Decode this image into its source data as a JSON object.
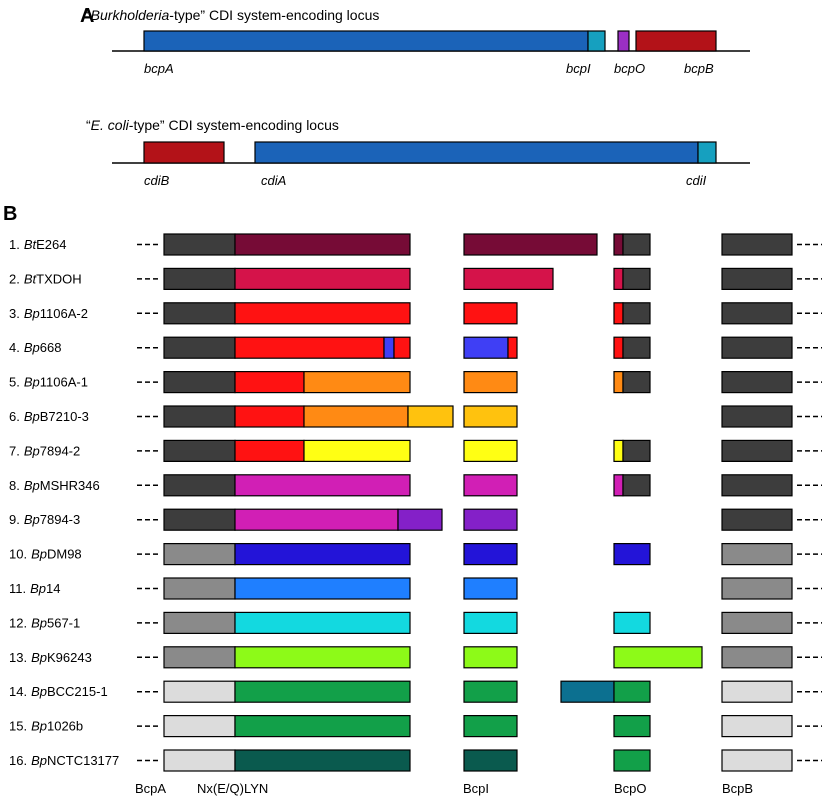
{
  "panel_a": {
    "label": "A",
    "locus1": {
      "title": "“Burkholderia-type” CDI system-encoding locus",
      "title_pre": "“",
      "title_it": "Burkholderia",
      "title_post": "-type” CDI system-encoding locus",
      "genes": [
        {
          "name": "bcpA",
          "color": "#1b63b8"
        },
        {
          "name": "bcpI",
          "color": "#16a0bf"
        },
        {
          "name": "bcpO",
          "color": "#9b2fc4"
        },
        {
          "name": "bcpB",
          "color": "#b31218"
        }
      ]
    },
    "locus2": {
      "title_pre": "“",
      "title_it": "E. coli",
      "title_post": "-type” CDI system-encoding locus",
      "genes": [
        {
          "name": "cdiB",
          "color": "#b31218"
        },
        {
          "name": "cdiA",
          "color": "#1b63b8"
        },
        {
          "name": "cdiI",
          "color": "#16a0bf"
        }
      ]
    }
  },
  "panel_b": {
    "label": "B",
    "strains": [
      {
        "num": "1.",
        "sp": "Bt",
        "name": "E264",
        "a_base": "#3d3d3d",
        "a_segs": [
          "#760b36"
        ],
        "i_segs": [
          "#760b36"
        ],
        "o_segs": [
          "#760b36"
        ],
        "b_color": "#3d3d3d"
      },
      {
        "num": "2.",
        "sp": "Bt",
        "name": "TXDOH",
        "a_base": "#3d3d3d",
        "a_segs": [
          "#d5134a"
        ],
        "i_segs": [
          "#d5134a"
        ],
        "o_segs": [
          "#d5134a"
        ],
        "b_color": "#3d3d3d"
      },
      {
        "num": "3.",
        "sp": "Bp",
        "name": "1106A-2",
        "a_base": "#3d3d3d",
        "a_segs": [
          "#ff1212"
        ],
        "i_segs": [
          "#ff1212"
        ],
        "o_segs": [
          "#ff1212"
        ],
        "b_color": "#3d3d3d"
      },
      {
        "num": "4.",
        "sp": "Bp",
        "name": "668",
        "a_base": "#3d3d3d",
        "a_segs": [
          "#ff1212",
          "#3f3ff5",
          "#ff1212"
        ],
        "i_segs": [
          "#3f3ff5",
          "#ff1212"
        ],
        "o_segs": [
          "#ff1212"
        ],
        "b_color": "#3d3d3d"
      },
      {
        "num": "5.",
        "sp": "Bp",
        "name": "1106A-1",
        "a_base": "#3d3d3d",
        "a_segs": [
          "#ff1212",
          "#ff8a14"
        ],
        "i_segs": [
          "#ff8a14"
        ],
        "o_segs": [
          "#ff8a14"
        ],
        "b_color": "#3d3d3d"
      },
      {
        "num": "6.",
        "sp": "Bp",
        "name": "B7210-3",
        "a_base": "#3d3d3d",
        "a_segs": [
          "#ff1212",
          "#ff8a14",
          "#ffc20e"
        ],
        "i_segs": [
          "#ffc20e"
        ],
        "o_segs": [],
        "b_color": "#3d3d3d"
      },
      {
        "num": "7.",
        "sp": "Bp",
        "name": "7894-2",
        "a_base": "#3d3d3d",
        "a_segs": [
          "#ff1212",
          "#ffff14"
        ],
        "i_segs": [
          "#ffff14"
        ],
        "o_segs": [
          "#ffff14"
        ],
        "b_color": "#3d3d3d"
      },
      {
        "num": "8.",
        "sp": "Bp",
        "name": "MSHR346",
        "a_base": "#3d3d3d",
        "a_segs": [
          "#d11fb5"
        ],
        "i_segs": [
          "#d11fb5"
        ],
        "o_segs": [
          "#d11fb5"
        ],
        "b_color": "#3d3d3d"
      },
      {
        "num": "9.",
        "sp": "Bp",
        "name": "7894-3",
        "a_base": "#3d3d3d",
        "a_segs": [
          "#d11fb5",
          "#8420c8"
        ],
        "i_segs": [
          "#8420c8"
        ],
        "o_segs": [],
        "b_color": "#3d3d3d"
      },
      {
        "num": "10.",
        "sp": "Bp",
        "name": "DM98",
        "a_base": "#8a8a8a",
        "a_segs": [
          "#2314d8"
        ],
        "i_segs": [
          "#2314d8"
        ],
        "o_segs": [
          "#2314d8"
        ],
        "b_color": "#8a8a8a"
      },
      {
        "num": "11.",
        "sp": "Bp",
        "name": "14",
        "a_base": "#8a8a8a",
        "a_segs": [
          "#1f7fff"
        ],
        "i_segs": [
          "#1f7fff"
        ],
        "o_segs": [],
        "b_color": "#8a8a8a"
      },
      {
        "num": "12.",
        "sp": "Bp",
        "name": "567-1",
        "a_base": "#8a8a8a",
        "a_segs": [
          "#13d9e0"
        ],
        "i_segs": [
          "#13d9e0"
        ],
        "o_segs": [
          "#13d9e0"
        ],
        "b_color": "#8a8a8a"
      },
      {
        "num": "13.",
        "sp": "Bp",
        "name": "K96243",
        "a_base": "#8a8a8a",
        "a_segs": [
          "#8dfa18"
        ],
        "i_segs": [
          "#8dfa18"
        ],
        "o_segs": [
          "#8dfa18"
        ],
        "b_color": "#8a8a8a"
      },
      {
        "num": "14.",
        "sp": "Bp",
        "name": "BCC215-1",
        "a_base": "#dcdcdc",
        "a_segs": [
          "#12a049"
        ],
        "i_segs": [
          "#12a049"
        ],
        "o_segs": [
          "#12a049"
        ],
        "b_color": "#dcdcdc",
        "extra_color": "#0c7090"
      },
      {
        "num": "15.",
        "sp": "Bp",
        "name": "1026b",
        "a_base": "#dcdcdc",
        "a_segs": [
          "#12a049"
        ],
        "i_segs": [
          "#12a049"
        ],
        "o_segs": [
          "#12a049"
        ],
        "b_color": "#dcdcdc"
      },
      {
        "num": "16.",
        "sp": "Bp",
        "name": "NCTC13177",
        "a_base": "#dcdcdc",
        "a_segs": [
          "#0a5a4e"
        ],
        "i_segs": [
          "#0a5a4e"
        ],
        "o_segs": [
          "#12a049"
        ],
        "b_color": "#dcdcdc"
      }
    ],
    "footer": {
      "bcpA": "BcpA",
      "motif": "Nx(E/Q)LYN",
      "bcpI": "BcpI",
      "bcpO": "BcpO",
      "bcpB": "BcpB"
    }
  }
}
